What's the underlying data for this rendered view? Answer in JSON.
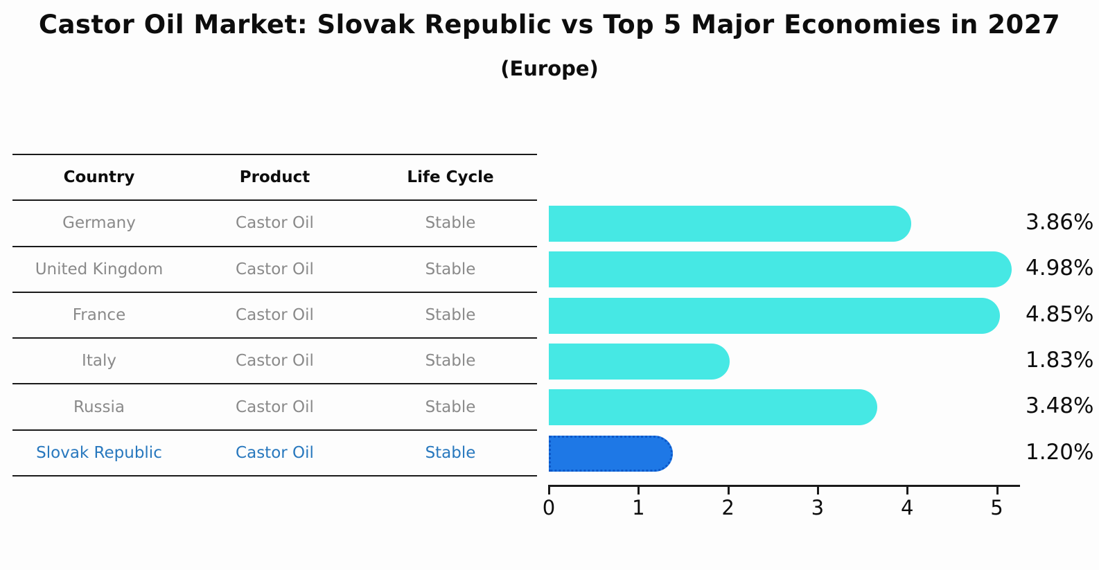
{
  "title": "Castor Oil Market: Slovak Republic vs Top 5 Major Economies in 2027",
  "subtitle": "(Europe)",
  "table": {
    "headers": {
      "country": "Country",
      "product": "Product",
      "life_cycle": "Life Cycle"
    },
    "rows": [
      {
        "country": "Germany",
        "product": "Castor Oil",
        "life_cycle": "Stable",
        "highlight": false
      },
      {
        "country": "United Kingdom",
        "product": "Castor Oil",
        "life_cycle": "Stable",
        "highlight": false
      },
      {
        "country": "France",
        "product": "Castor Oil",
        "life_cycle": "Stable",
        "highlight": false
      },
      {
        "country": "Italy",
        "product": "Castor Oil",
        "life_cycle": "Stable",
        "highlight": false
      },
      {
        "country": "Russia",
        "product": "Castor Oil",
        "life_cycle": "Stable",
        "highlight": false
      },
      {
        "country": "Slovak Republic",
        "product": "Castor Oil",
        "life_cycle": "Stable",
        "highlight": true
      }
    ]
  },
  "chart_data": {
    "type": "bar",
    "orientation": "horizontal",
    "title": "Castor Oil Market: Slovak Republic vs Top 5 Major Economies in 2027",
    "subtitle": "(Europe)",
    "categories": [
      "Germany",
      "United Kingdom",
      "France",
      "Italy",
      "Russia",
      "Slovak Republic"
    ],
    "values": [
      3.86,
      4.98,
      4.85,
      1.83,
      3.48,
      1.2
    ],
    "labels": [
      "3.86%",
      "4.98%",
      "4.85%",
      "1.83%",
      "3.48%",
      "1.20%"
    ],
    "xlim": [
      0,
      5.26
    ],
    "xticks": [
      0,
      1,
      2,
      3,
      4,
      5
    ],
    "grid": false,
    "legend": false,
    "highlight_index": 5,
    "bar_color": "#46e8e4",
    "highlight_bar_color": "#1e78e6",
    "highlight_text_color": "#2878be",
    "axis_color": "#1a1a1a"
  }
}
